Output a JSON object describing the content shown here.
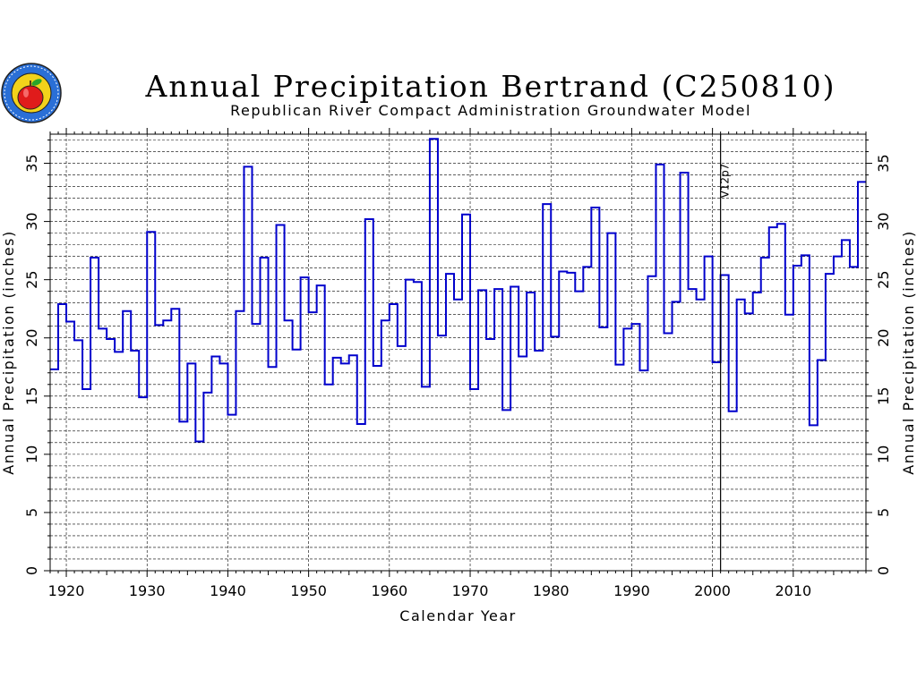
{
  "chart_data": {
    "type": "line",
    "step": true,
    "title": "Annual Precipitation Bertrand (C250810)",
    "subtitle": "Republican River Compact Administration Groundwater Model",
    "xlabel": "Calendar Year",
    "ylabel": "Annual Precipitation (inches)",
    "ylabel_right": "Annual Precipitation (inches)",
    "xlim": [
      1918,
      2019
    ],
    "ylim": [
      0,
      37.5
    ],
    "xticks": [
      1920,
      1930,
      1940,
      1950,
      1960,
      1970,
      1980,
      1990,
      2000,
      2010
    ],
    "yticks": [
      0,
      5,
      10,
      15,
      20,
      25,
      30,
      35
    ],
    "grid": true,
    "line_color": "#0000cc",
    "annotation": {
      "text": "V12p7",
      "x": 2001
    },
    "series": [
      {
        "x": [
          1918,
          1919,
          1920,
          1921,
          1922,
          1923,
          1924,
          1925,
          1926,
          1927,
          1928,
          1929,
          1930,
          1931,
          1932,
          1933,
          1934,
          1935,
          1936,
          1937,
          1938,
          1939,
          1940,
          1941,
          1942,
          1943,
          1944,
          1945,
          1946,
          1947,
          1948,
          1949,
          1950,
          1951,
          1952,
          1953,
          1954,
          1955,
          1956,
          1957,
          1958,
          1959,
          1960,
          1961,
          1962,
          1963,
          1964,
          1965,
          1966,
          1967,
          1968,
          1969,
          1970,
          1971,
          1972,
          1973,
          1974,
          1975,
          1976,
          1977,
          1978,
          1979,
          1980,
          1981,
          1982,
          1983,
          1984,
          1985,
          1986,
          1987,
          1988,
          1989,
          1990,
          1991,
          1992,
          1993,
          1994,
          1995,
          1996,
          1997,
          1998,
          1999,
          2000,
          2001,
          2002,
          2003,
          2004,
          2005,
          2006,
          2007,
          2008,
          2009,
          2010,
          2011,
          2012,
          2013,
          2014,
          2015,
          2016,
          2017,
          2018
        ],
        "values": [
          17.3,
          22.9,
          21.4,
          19.8,
          15.6,
          26.9,
          20.8,
          19.9,
          18.8,
          22.3,
          18.9,
          14.9,
          29.1,
          21.1,
          21.5,
          22.5,
          12.8,
          17.8,
          11.1,
          15.3,
          18.4,
          17.8,
          13.4,
          22.3,
          34.7,
          21.2,
          26.9,
          17.5,
          29.7,
          21.5,
          19.0,
          25.2,
          22.2,
          24.5,
          16.0,
          18.3,
          17.8,
          18.5,
          12.6,
          30.2,
          17.6,
          21.5,
          22.9,
          19.3,
          25.0,
          24.8,
          15.8,
          37.1,
          20.2,
          25.5,
          23.3,
          30.6,
          15.6,
          24.1,
          19.9,
          24.2,
          13.8,
          24.4,
          18.4,
          23.9,
          18.9,
          31.5,
          20.1,
          25.7,
          25.6,
          24.0,
          26.1,
          31.2,
          20.9,
          29.0,
          17.7,
          20.8,
          21.2,
          17.2,
          25.3,
          34.9,
          20.4,
          23.1,
          34.2,
          24.2,
          23.3,
          27.0,
          17.9,
          25.4,
          13.7,
          23.3,
          22.1,
          23.9,
          26.9,
          29.5,
          29.8,
          22.0,
          26.2,
          27.1,
          12.5,
          18.1,
          25.5,
          27.0,
          28.4,
          26.1,
          33.4
        ]
      }
    ]
  },
  "logo": {
    "name": "rrca-apple-logo"
  }
}
